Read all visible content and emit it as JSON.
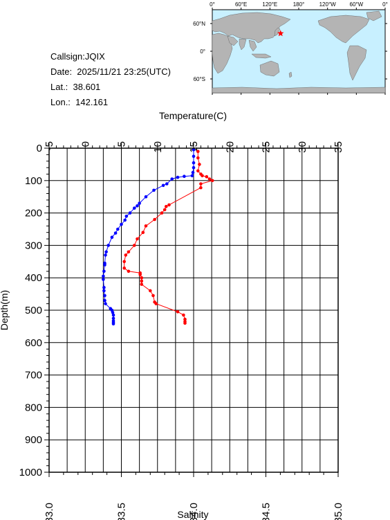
{
  "info": {
    "callsign": "Callsign:JQIX",
    "date": "Date:  2025/11/21 23:25(UTC)",
    "lat": "Lat.:  38.601",
    "lon": "Lon.:  142.161"
  },
  "map": {
    "lon_labels": [
      "0°",
      "60°E",
      "120°E",
      "180°",
      "120°W",
      "60°W",
      "0°"
    ],
    "lat_labels": [
      "60°N",
      "0°",
      "60°S"
    ],
    "station_marker": {
      "lat": 38.601,
      "lon": 142.161
    },
    "colors": {
      "ocean": "#c8f0ff",
      "land": "#b4b4b4",
      "marker": "#ff0000"
    }
  },
  "chart_data": {
    "type": "line",
    "top_axis_label": "Temperature(C)",
    "bottom_axis_label": "Salinity",
    "y_axis_label": "Depth(m)",
    "temperature_range": [
      -5,
      35
    ],
    "temperature_ticks": [
      "-5",
      "0",
      "5",
      "10",
      "15",
      "20",
      "25",
      "30",
      "35"
    ],
    "salinity_range": [
      33.0,
      35.0
    ],
    "salinity_ticks": [
      "33.0",
      "33.5",
      "34.0",
      "34.5",
      "35.0"
    ],
    "depth_range": [
      0,
      1000
    ],
    "depth_ticks": [
      "0",
      "100",
      "200",
      "300",
      "400",
      "500",
      "600",
      "700",
      "800",
      "900",
      "1000"
    ],
    "grid": true,
    "series": [
      {
        "axis": "temperature",
        "color": "#0000ff",
        "points": [
          [
            15.0,
            5
          ],
          [
            15.0,
            25
          ],
          [
            15.0,
            45
          ],
          [
            15.0,
            60
          ],
          [
            14.9,
            75
          ],
          [
            14.8,
            85
          ],
          [
            13.7,
            87
          ],
          [
            12.8,
            90
          ],
          [
            12.0,
            95
          ],
          [
            11.3,
            110
          ],
          [
            10.8,
            115
          ],
          [
            9.5,
            130
          ],
          [
            8.4,
            150
          ],
          [
            7.5,
            170
          ],
          [
            7.2,
            178
          ],
          [
            6.8,
            185
          ],
          [
            6.2,
            200
          ],
          [
            5.7,
            210
          ],
          [
            5.5,
            222
          ],
          [
            5.0,
            235
          ],
          [
            4.5,
            250
          ],
          [
            4.2,
            262
          ],
          [
            3.7,
            275
          ],
          [
            3.2,
            300
          ],
          [
            2.9,
            320
          ],
          [
            2.8,
            330
          ],
          [
            2.7,
            355
          ],
          [
            2.7,
            360
          ],
          [
            2.6,
            380
          ],
          [
            2.5,
            395
          ],
          [
            2.5,
            405
          ],
          [
            2.6,
            430
          ],
          [
            2.6,
            440
          ],
          [
            2.7,
            455
          ],
          [
            2.7,
            470
          ],
          [
            2.8,
            480
          ],
          [
            3.5,
            495
          ],
          [
            3.7,
            500
          ],
          [
            3.8,
            507
          ],
          [
            3.9,
            515
          ],
          [
            3.9,
            525
          ],
          [
            3.9,
            533
          ],
          [
            3.9,
            538
          ],
          [
            3.9,
            542
          ]
        ]
      },
      {
        "axis": "salinity",
        "color": "#ff0000",
        "points": [
          [
            34.03,
            10
          ],
          [
            34.03,
            30
          ],
          [
            34.04,
            50
          ],
          [
            34.03,
            70
          ],
          [
            34.05,
            80
          ],
          [
            34.06,
            85
          ],
          [
            34.09,
            88
          ],
          [
            34.11,
            95
          ],
          [
            34.13,
            100
          ],
          [
            34.05,
            110
          ],
          [
            34.05,
            122
          ],
          [
            33.83,
            175
          ],
          [
            33.81,
            180
          ],
          [
            33.8,
            190
          ],
          [
            33.78,
            200
          ],
          [
            33.73,
            220
          ],
          [
            33.67,
            240
          ],
          [
            33.65,
            260
          ],
          [
            33.61,
            280
          ],
          [
            33.59,
            300
          ],
          [
            33.55,
            320
          ],
          [
            33.53,
            330
          ],
          [
            33.52,
            350
          ],
          [
            33.52,
            370
          ],
          [
            33.55,
            380
          ],
          [
            33.63,
            385
          ],
          [
            33.63,
            390
          ],
          [
            33.64,
            400
          ],
          [
            33.64,
            410
          ],
          [
            33.64,
            420
          ],
          [
            33.7,
            440
          ],
          [
            33.72,
            455
          ],
          [
            33.73,
            475
          ],
          [
            33.74,
            480
          ],
          [
            33.89,
            505
          ],
          [
            33.93,
            515
          ],
          [
            33.94,
            528
          ],
          [
            33.94,
            535
          ],
          [
            33.94,
            540
          ]
        ]
      }
    ]
  }
}
